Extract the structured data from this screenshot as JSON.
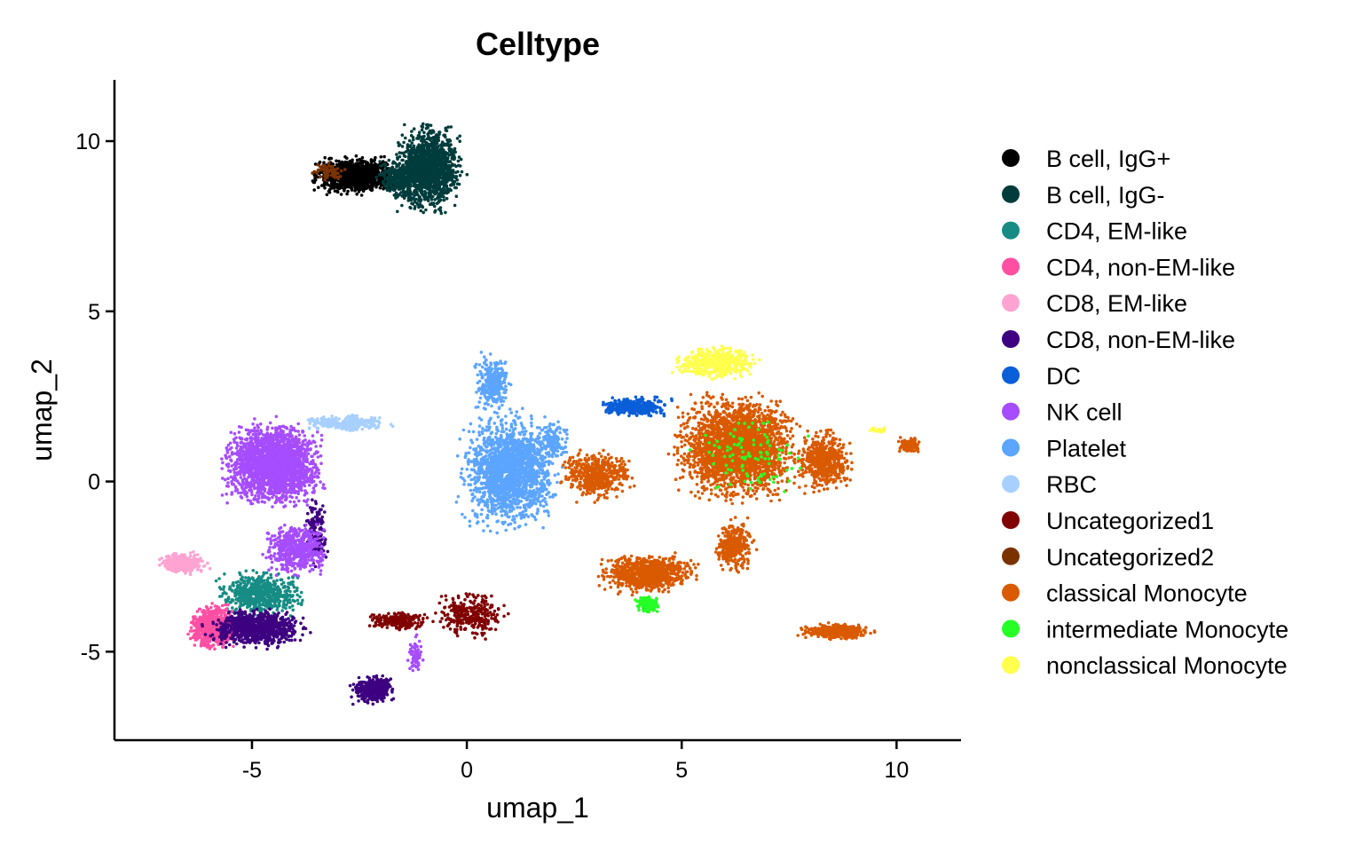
{
  "chart_data": {
    "type": "scatter",
    "title": "Celltype",
    "xlabel": "umap_1",
    "ylabel": "umap_2",
    "xlim": [
      -8.2,
      11.5
    ],
    "ylim": [
      -7.6,
      11.8
    ],
    "xticks": [
      -5,
      0,
      5,
      10
    ],
    "yticks": [
      -5,
      0,
      5,
      10
    ],
    "grid": false,
    "legend_position": "right",
    "series": [
      {
        "name": "B cell, IgG+",
        "color": "#000000",
        "clusters": [
          {
            "cx": -2.6,
            "cy": 9.0,
            "rx": 1.1,
            "ry": 0.6,
            "n": 1000
          }
        ]
      },
      {
        "name": "B cell, IgG-",
        "color": "#003C3C",
        "clusters": [
          {
            "cx": -0.9,
            "cy": 9.2,
            "rx": 0.85,
            "ry": 1.4,
            "n": 1300
          },
          {
            "cx": -1.6,
            "cy": 8.9,
            "rx": 0.5,
            "ry": 0.6,
            "n": 300
          }
        ]
      },
      {
        "name": "CD4, EM-like",
        "color": "#168C84",
        "clusters": [
          {
            "cx": -4.8,
            "cy": -3.3,
            "rx": 1.1,
            "ry": 0.7,
            "n": 600
          }
        ]
      },
      {
        "name": "CD4, non-EM-like",
        "color": "#FF4FA3",
        "clusters": [
          {
            "cx": -5.9,
            "cy": -4.3,
            "rx": 0.6,
            "ry": 0.7,
            "n": 700
          }
        ]
      },
      {
        "name": "CD8, EM-like",
        "color": "#FFA3D2",
        "clusters": [
          {
            "cx": -6.6,
            "cy": -2.4,
            "rx": 0.6,
            "ry": 0.35,
            "n": 300
          }
        ]
      },
      {
        "name": "CD8, non-EM-like",
        "color": "#3D0080",
        "clusters": [
          {
            "cx": -4.9,
            "cy": -4.3,
            "rx": 1.2,
            "ry": 0.6,
            "n": 900
          },
          {
            "cx": -2.2,
            "cy": -6.1,
            "rx": 0.55,
            "ry": 0.45,
            "n": 350
          },
          {
            "cx": -3.5,
            "cy": -1.5,
            "rx": 0.3,
            "ry": 1.2,
            "n": 150
          }
        ]
      },
      {
        "name": "DC",
        "color": "#0A5ED8",
        "clusters": [
          {
            "cx": 3.9,
            "cy": 2.2,
            "rx": 0.9,
            "ry": 0.3,
            "n": 350
          }
        ]
      },
      {
        "name": "NK cell",
        "color": "#A64DFF",
        "clusters": [
          {
            "cx": -4.5,
            "cy": 0.5,
            "rx": 1.2,
            "ry": 1.3,
            "n": 2200
          },
          {
            "cx": -4.0,
            "cy": -2.0,
            "rx": 0.8,
            "ry": 0.8,
            "n": 500
          },
          {
            "cx": -1.2,
            "cy": -5.1,
            "rx": 0.2,
            "ry": 0.6,
            "n": 80
          }
        ]
      },
      {
        "name": "Platelet",
        "color": "#5CA5FF",
        "clusters": [
          {
            "cx": 1.0,
            "cy": 0.3,
            "rx": 1.2,
            "ry": 1.8,
            "n": 1800
          },
          {
            "cx": 0.6,
            "cy": 2.9,
            "rx": 0.45,
            "ry": 0.9,
            "n": 300
          },
          {
            "cx": 2.0,
            "cy": 1.2,
            "rx": 0.4,
            "ry": 0.6,
            "n": 150
          }
        ]
      },
      {
        "name": "RBC",
        "color": "#A8D0FF",
        "clusters": [
          {
            "cx": -2.8,
            "cy": 1.7,
            "rx": 1.1,
            "ry": 0.25,
            "n": 300
          }
        ]
      },
      {
        "name": "Uncategorized1",
        "color": "#800000",
        "clusters": [
          {
            "cx": 0.1,
            "cy": -3.9,
            "rx": 0.9,
            "ry": 0.7,
            "n": 300
          },
          {
            "cx": -1.6,
            "cy": -4.1,
            "rx": 0.8,
            "ry": 0.3,
            "n": 200
          }
        ]
      },
      {
        "name": "Uncategorized2",
        "color": "#7A3300",
        "clusters": [
          {
            "cx": -3.2,
            "cy": 9.1,
            "rx": 0.5,
            "ry": 0.3,
            "n": 60
          }
        ]
      },
      {
        "name": "classical Monocyte",
        "color": "#D95A00",
        "clusters": [
          {
            "cx": 6.3,
            "cy": 1.0,
            "rx": 1.5,
            "ry": 1.6,
            "n": 2600
          },
          {
            "cx": 4.2,
            "cy": -2.7,
            "rx": 1.2,
            "ry": 0.6,
            "n": 900
          },
          {
            "cx": 8.3,
            "cy": 0.6,
            "rx": 0.7,
            "ry": 1.0,
            "n": 500
          },
          {
            "cx": 3.0,
            "cy": 0.2,
            "rx": 0.9,
            "ry": 0.8,
            "n": 500
          },
          {
            "cx": 6.2,
            "cy": -1.9,
            "rx": 0.5,
            "ry": 0.8,
            "n": 300
          },
          {
            "cx": 8.6,
            "cy": -4.4,
            "rx": 0.9,
            "ry": 0.25,
            "n": 350
          },
          {
            "cx": 10.3,
            "cy": 1.05,
            "rx": 0.3,
            "ry": 0.25,
            "n": 120
          }
        ]
      },
      {
        "name": "intermediate Monocyte",
        "color": "#26FF26",
        "clusters": [
          {
            "cx": 4.2,
            "cy": -3.6,
            "rx": 0.3,
            "ry": 0.25,
            "n": 120
          },
          {
            "cx": 6.6,
            "cy": 0.8,
            "rx": 1.5,
            "ry": 1.3,
            "n": 100
          }
        ]
      },
      {
        "name": "nonclassical Monocyte",
        "color": "#FFFF4D",
        "clusters": [
          {
            "cx": 5.8,
            "cy": 3.5,
            "rx": 1.0,
            "ry": 0.5,
            "n": 500
          },
          {
            "cx": 9.6,
            "cy": 1.5,
            "rx": 0.3,
            "ry": 0.1,
            "n": 30
          }
        ]
      }
    ]
  }
}
